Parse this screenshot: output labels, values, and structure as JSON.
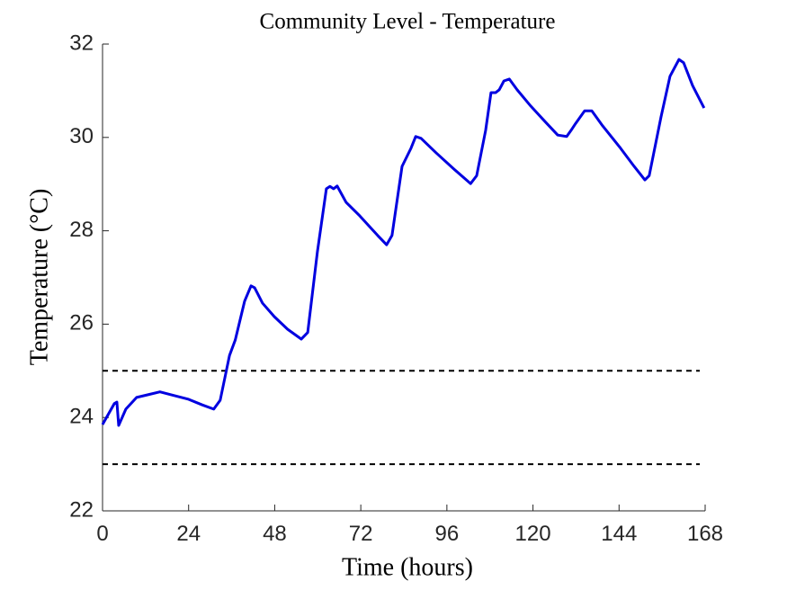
{
  "chart_data": {
    "type": "line",
    "title": "Community Level - Temperature",
    "x_label": "Time (hours)",
    "y_label": "Temperature (°C)",
    "xlim": [
      0,
      168
    ],
    "xticks": [
      0,
      24,
      48,
      72,
      96,
      120,
      144,
      168
    ],
    "ylim": [
      22,
      32
    ],
    "yticks": [
      22,
      24,
      26,
      28,
      30,
      32
    ],
    "series": [
      {
        "color": "#0000e0",
        "x": [
          0,
          3.3,
          4,
          4.5,
          6.5,
          9.5,
          12.8,
          16,
          19,
          24,
          27.8,
          31,
          32.8,
          35.4,
          37,
          39.6,
          41.4,
          42.4,
          44.6,
          47.9,
          51.6,
          55.4,
          57.2,
          59.9,
          62.4,
          63.4,
          64.4,
          65.4,
          67.9,
          71.7,
          76.7,
          79.2,
          80.7,
          83.5,
          86,
          87.3,
          88.8,
          93,
          98,
          102.6,
          104.3,
          106.8,
          108.3,
          109.6,
          110.6,
          111.9,
          113.4,
          115.6,
          119.4,
          123.6,
          126.9,
          129.4,
          130.6,
          131.9,
          134.4,
          136.4,
          139.4,
          144.4,
          148.2,
          151.2,
          152.4,
          155.7,
          158.2,
          160.7,
          162,
          164.5,
          167.7
        ],
        "values": [
          23.85,
          24.3,
          24.33,
          23.83,
          24.18,
          24.43,
          24.49,
          24.55,
          24.49,
          24.39,
          24.27,
          24.18,
          24.37,
          25.33,
          25.66,
          26.49,
          26.82,
          26.78,
          26.45,
          26.16,
          25.89,
          25.68,
          25.82,
          27.55,
          28.9,
          28.95,
          28.9,
          28.96,
          28.61,
          28.32,
          27.9,
          27.7,
          27.9,
          29.38,
          29.77,
          30.02,
          29.98,
          29.67,
          29.32,
          29.01,
          29.18,
          30.15,
          30.96,
          30.96,
          31.02,
          31.21,
          31.25,
          31.02,
          30.67,
          30.32,
          30.05,
          30.02,
          30.15,
          30.3,
          30.57,
          30.57,
          30.25,
          29.77,
          29.38,
          29.09,
          29.18,
          30.44,
          31.31,
          31.67,
          31.6,
          31.11,
          30.63
        ]
      }
    ],
    "reference_lines": [
      {
        "value": 25,
        "x": [
          0,
          166.5
        ],
        "color": "#000000"
      },
      {
        "value": 23,
        "x": [
          0,
          166.5
        ],
        "color": "#000000"
      }
    ]
  }
}
